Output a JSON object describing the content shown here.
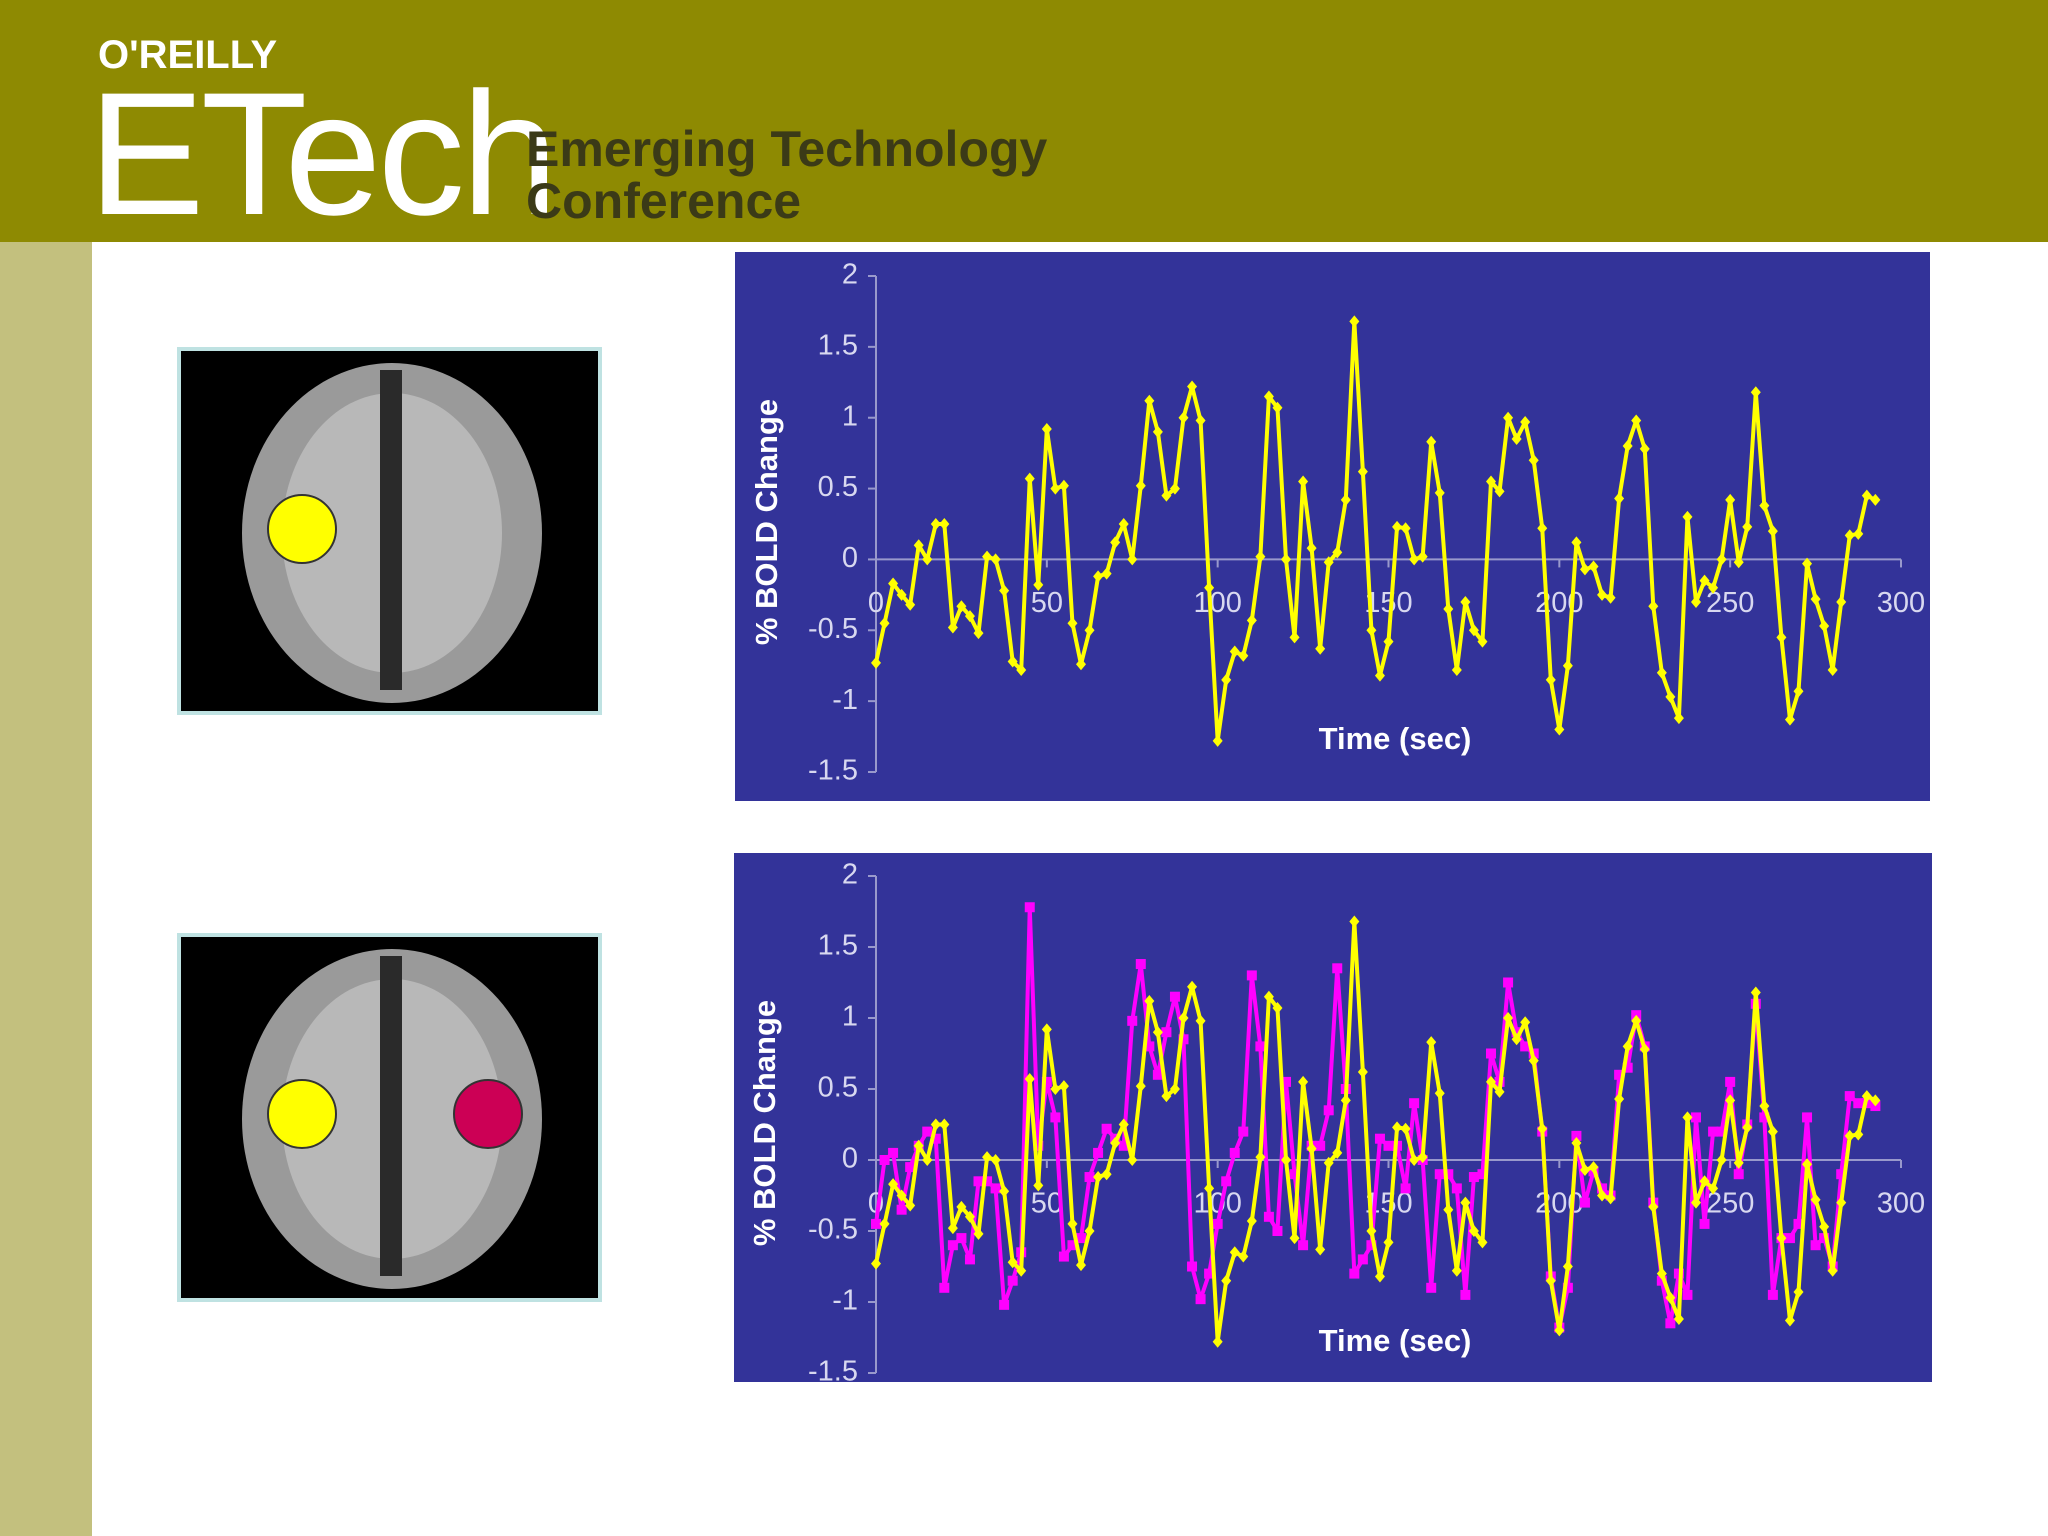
{
  "header": {
    "publisher": "O'REILLY",
    "brand": "ETech",
    "line1": "Emerging Technology",
    "line2": "Conference"
  },
  "chart_data": [
    {
      "type": "line",
      "xlabel": "Time (sec)",
      "ylabel": "% BOLD Change",
      "xlim": [
        0,
        300
      ],
      "xticks": [
        0,
        50,
        100,
        150,
        200,
        250,
        300
      ],
      "ylim": [
        -1.5,
        2
      ],
      "yticks": [
        -1.5,
        -1,
        -0.5,
        0,
        0.5,
        1,
        1.5,
        2
      ],
      "grid": false,
      "x": [
        0,
        2.5,
        5,
        7.5,
        10,
        12.5,
        15,
        17.5,
        20,
        22.5,
        25,
        27.5,
        30,
        32.5,
        35,
        37.5,
        40,
        42.5,
        45,
        47.5,
        50,
        52.5,
        55,
        57.5,
        60,
        62.5,
        65,
        67.5,
        70,
        72.5,
        75,
        77.5,
        80,
        82.5,
        85,
        87.5,
        90,
        92.5,
        95,
        97.5,
        100,
        102.5,
        105,
        107.5,
        110,
        112.5,
        115,
        117.5,
        120,
        122.5,
        125,
        127.5,
        130,
        132.5,
        135,
        137.5,
        140,
        142.5,
        145,
        147.5,
        150,
        152.5,
        155,
        157.5,
        160,
        162.5,
        165,
        167.5,
        170,
        172.5,
        175,
        177.5,
        180,
        182.5,
        185,
        187.5,
        190,
        192.5,
        195,
        197.5,
        200,
        202.5,
        205,
        207.5,
        210,
        212.5,
        215,
        217.5,
        220,
        222.5,
        225,
        227.5,
        230,
        232.5,
        235,
        237.5,
        240,
        242.5,
        245,
        247.5,
        250,
        252.5,
        255,
        257.5,
        260,
        262.5,
        265,
        267.5,
        270,
        272.5,
        275,
        277.5,
        280,
        282.5,
        285,
        287.5,
        290,
        292.5
      ],
      "series": [
        {
          "color": "#ffff00",
          "marker": "diamond",
          "values": [
            -0.73,
            -0.45,
            -0.17,
            -0.25,
            -0.32,
            0.1,
            0.0,
            0.25,
            0.25,
            -0.48,
            -0.33,
            -0.4,
            -0.52,
            0.02,
            0.0,
            -0.22,
            -0.72,
            -0.78,
            0.57,
            -0.18,
            0.92,
            0.5,
            0.52,
            -0.45,
            -0.74,
            -0.5,
            -0.12,
            -0.1,
            0.12,
            0.25,
            0.0,
            0.52,
            1.12,
            0.9,
            0.45,
            0.5,
            1.0,
            1.22,
            0.98,
            -0.2,
            -1.28,
            -0.85,
            -0.65,
            -0.68,
            -0.43,
            0.02,
            1.15,
            1.07,
            0.0,
            -0.55,
            0.55,
            0.08,
            -0.63,
            -0.02,
            0.05,
            0.42,
            1.68,
            0.62,
            -0.5,
            -0.82,
            -0.58,
            0.23,
            0.22,
            0.0,
            0.02,
            0.83,
            0.47,
            -0.35,
            -0.78,
            -0.3,
            -0.5,
            -0.58,
            0.55,
            0.48,
            1.0,
            0.85,
            0.97,
            0.7,
            0.22,
            -0.85,
            -1.2,
            -0.75,
            0.12,
            -0.07,
            -0.05,
            -0.25,
            -0.27,
            0.43,
            0.8,
            0.98,
            0.78,
            -0.33,
            -0.8,
            -0.97,
            -1.12,
            0.3,
            -0.3,
            -0.15,
            -0.2,
            0.0,
            0.42,
            -0.02,
            0.23,
            1.18,
            0.38,
            0.2,
            -0.55,
            -1.13,
            -0.93,
            -0.03,
            -0.28,
            -0.47,
            -0.78,
            -0.3,
            0.17,
            0.18,
            0.45,
            0.42
          ]
        }
      ]
    },
    {
      "type": "line",
      "xlabel": "Time (sec)",
      "ylabel": "% BOLD Change",
      "xlim": [
        0,
        300
      ],
      "xticks": [
        0,
        50,
        100,
        150,
        200,
        250,
        300
      ],
      "ylim": [
        -1.5,
        2
      ],
      "yticks": [
        -1.5,
        -1,
        -0.5,
        0,
        0.5,
        1,
        1.5,
        2
      ],
      "grid": false,
      "x": [
        0,
        2.5,
        5,
        7.5,
        10,
        12.5,
        15,
        17.5,
        20,
        22.5,
        25,
        27.5,
        30,
        32.5,
        35,
        37.5,
        40,
        42.5,
        45,
        47.5,
        50,
        52.5,
        55,
        57.5,
        60,
        62.5,
        65,
        67.5,
        70,
        72.5,
        75,
        77.5,
        80,
        82.5,
        85,
        87.5,
        90,
        92.5,
        95,
        97.5,
        100,
        102.5,
        105,
        107.5,
        110,
        112.5,
        115,
        117.5,
        120,
        122.5,
        125,
        127.5,
        130,
        132.5,
        135,
        137.5,
        140,
        142.5,
        145,
        147.5,
        150,
        152.5,
        155,
        157.5,
        160,
        162.5,
        165,
        167.5,
        170,
        172.5,
        175,
        177.5,
        180,
        182.5,
        185,
        187.5,
        190,
        192.5,
        195,
        197.5,
        200,
        202.5,
        205,
        207.5,
        210,
        212.5,
        215,
        217.5,
        220,
        222.5,
        225,
        227.5,
        230,
        232.5,
        235,
        237.5,
        240,
        242.5,
        245,
        247.5,
        250,
        252.5,
        255,
        257.5,
        260,
        262.5,
        265,
        267.5,
        270,
        272.5,
        275,
        277.5,
        280,
        282.5,
        285,
        287.5,
        290,
        292.5
      ],
      "series": [
        {
          "color": "#ff00ff",
          "marker": "square",
          "values": [
            -0.45,
            0.0,
            0.05,
            -0.35,
            -0.05,
            0.1,
            0.2,
            0.15,
            -0.9,
            -0.6,
            -0.55,
            -0.7,
            -0.15,
            -0.15,
            -0.2,
            -1.02,
            -0.85,
            -0.65,
            1.78,
            0.1,
            0.55,
            0.3,
            -0.68,
            -0.6,
            -0.55,
            -0.12,
            0.05,
            0.22,
            0.15,
            0.1,
            0.98,
            1.38,
            0.8,
            0.6,
            0.9,
            1.15,
            0.85,
            -0.75,
            -0.98,
            -0.8,
            -0.45,
            -0.15,
            0.05,
            0.2,
            1.3,
            0.8,
            -0.4,
            -0.5,
            0.55,
            -0.1,
            -0.6,
            0.1,
            0.1,
            0.35,
            1.35,
            0.5,
            -0.8,
            -0.7,
            -0.6,
            0.15,
            0.1,
            0.1,
            -0.2,
            0.4,
            0.0,
            -0.9,
            -0.1,
            -0.1,
            -0.2,
            -0.95,
            -0.12,
            -0.1,
            0.75,
            0.55,
            1.25,
            0.9,
            0.8,
            0.75,
            0.2,
            -0.82,
            -1.18,
            -0.9,
            0.17,
            -0.3,
            -0.08,
            -0.2,
            -0.25,
            0.6,
            0.65,
            1.02,
            0.8,
            -0.3,
            -0.85,
            -1.15,
            -0.8,
            -0.95,
            0.3,
            -0.45,
            0.2,
            0.2,
            0.55,
            -0.1,
            0.25,
            1.1,
            0.3,
            -0.95,
            -0.55,
            -0.55,
            -0.45,
            0.3,
            -0.6,
            -0.55,
            -0.75,
            -0.1,
            0.45,
            0.4,
            0.4,
            0.38
          ]
        },
        {
          "color": "#ffff00",
          "marker": "diamond",
          "values": [
            -0.73,
            -0.45,
            -0.17,
            -0.25,
            -0.32,
            0.1,
            0.0,
            0.25,
            0.25,
            -0.48,
            -0.33,
            -0.4,
            -0.52,
            0.02,
            0.0,
            -0.22,
            -0.72,
            -0.78,
            0.57,
            -0.18,
            0.92,
            0.5,
            0.52,
            -0.45,
            -0.74,
            -0.5,
            -0.12,
            -0.1,
            0.12,
            0.25,
            0.0,
            0.52,
            1.12,
            0.9,
            0.45,
            0.5,
            1.0,
            1.22,
            0.98,
            -0.2,
            -1.28,
            -0.85,
            -0.65,
            -0.68,
            -0.43,
            0.02,
            1.15,
            1.07,
            0.0,
            -0.55,
            0.55,
            0.08,
            -0.63,
            -0.02,
            0.05,
            0.42,
            1.68,
            0.62,
            -0.5,
            -0.82,
            -0.58,
            0.23,
            0.22,
            0.0,
            0.02,
            0.83,
            0.47,
            -0.35,
            -0.78,
            -0.3,
            -0.5,
            -0.58,
            0.55,
            0.48,
            1.0,
            0.85,
            0.97,
            0.7,
            0.22,
            -0.85,
            -1.2,
            -0.75,
            0.12,
            -0.07,
            -0.05,
            -0.25,
            -0.27,
            0.43,
            0.8,
            0.98,
            0.78,
            -0.33,
            -0.8,
            -0.97,
            -1.12,
            0.3,
            -0.3,
            -0.15,
            -0.2,
            0.0,
            0.42,
            -0.02,
            0.23,
            1.18,
            0.38,
            0.2,
            -0.55,
            -1.13,
            -0.93,
            -0.03,
            -0.28,
            -0.47,
            -0.78,
            -0.3,
            0.17,
            0.18,
            0.45,
            0.42
          ]
        }
      ]
    }
  ]
}
